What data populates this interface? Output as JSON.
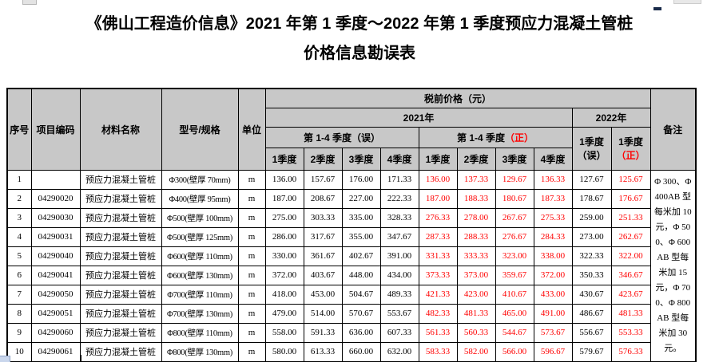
{
  "title": {
    "line1": "《佛山工程造价信息》2021 年第 1 季度～2022 年第 1 季度预应力混凝土管桩",
    "line2": "价格信息勘误表"
  },
  "colors": {
    "accent_red": "#ff0000",
    "header_bg": "#c8c8c8",
    "border": "#000000"
  },
  "table": {
    "header": {
      "seq": "序号",
      "code": "项目编码",
      "material": "材料名称",
      "spec": "型号/规格",
      "unit": "单位",
      "price_group": "税前价格（元）",
      "year2021": "2021年",
      "year2022": "2022年",
      "group_wrong": "第 1-4 季度（误）",
      "group_right_prefix": "第 1-4 季度",
      "mark_right": "（正）",
      "mark_wrong": "（误）",
      "q2022_label": "1季度",
      "quarters": [
        "1季度",
        "2季度",
        "3季度",
        "4季度"
      ],
      "note": "备注"
    },
    "rows": [
      {
        "seq": "1",
        "code": "",
        "material": "预应力混凝土管桩",
        "spec": "Φ300(壁厚 70mm)",
        "unit": "m",
        "wrong_2021": [
          "136.00",
          "157.67",
          "176.00",
          "171.33"
        ],
        "right_2021": [
          "136.00",
          "137.33",
          "129.67",
          "136.33"
        ],
        "wrong_2022": "127.67",
        "right_2022": "125.67"
      },
      {
        "seq": "2",
        "code": "04290020",
        "material": "预应力混凝土管桩",
        "spec": "Φ400(壁厚 95mm)",
        "unit": "m",
        "wrong_2021": [
          "187.00",
          "208.67",
          "227.00",
          "222.33"
        ],
        "right_2021": [
          "187.00",
          "188.33",
          "180.67",
          "187.33"
        ],
        "wrong_2022": "178.67",
        "right_2022": "176.67"
      },
      {
        "seq": "3",
        "code": "04290030",
        "material": "预应力混凝土管桩",
        "spec": "Φ500(壁厚 100mm)",
        "unit": "m",
        "wrong_2021": [
          "275.00",
          "303.33",
          "335.00",
          "328.33"
        ],
        "right_2021": [
          "276.33",
          "278.00",
          "267.67",
          "275.33"
        ],
        "wrong_2022": "259.00",
        "right_2022": "251.33"
      },
      {
        "seq": "4",
        "code": "04290031",
        "material": "预应力混凝土管桩",
        "spec": "Φ500(壁厚 125mm)",
        "unit": "m",
        "wrong_2021": [
          "286.00",
          "317.67",
          "355.00",
          "347.67"
        ],
        "right_2021": [
          "287.33",
          "288.33",
          "276.67",
          "284.33"
        ],
        "wrong_2022": "273.00",
        "right_2022": "262.67"
      },
      {
        "seq": "5",
        "code": "04290040",
        "material": "预应力混凝土管桩",
        "spec": "Φ600(壁厚 110mm)",
        "unit": "m",
        "wrong_2021": [
          "330.00",
          "361.67",
          "402.67",
          "391.00"
        ],
        "right_2021": [
          "331.33",
          "333.33",
          "323.00",
          "338.00"
        ],
        "wrong_2022": "322.33",
        "right_2022": "322.00"
      },
      {
        "seq": "6",
        "code": "04290041",
        "material": "预应力混凝土管桩",
        "spec": "Φ600(壁厚 130mm)",
        "unit": "m",
        "wrong_2021": [
          "372.00",
          "403.67",
          "448.00",
          "434.00"
        ],
        "right_2021": [
          "373.33",
          "373.00",
          "359.67",
          "372.00"
        ],
        "wrong_2022": "350.33",
        "right_2022": "346.67"
      },
      {
        "seq": "7",
        "code": "04290050",
        "material": "预应力混凝土管桩",
        "spec": "Φ700(壁厚 110mm)",
        "unit": "m",
        "wrong_2021": [
          "418.00",
          "453.00",
          "504.67",
          "489.33"
        ],
        "right_2021": [
          "421.33",
          "423.00",
          "410.67",
          "433.00"
        ],
        "wrong_2022": "430.67",
        "right_2022": "423.67"
      },
      {
        "seq": "8",
        "code": "04290051",
        "material": "预应力混凝土管桩",
        "spec": "Φ700(壁厚 130mm)",
        "unit": "m",
        "wrong_2021": [
          "479.00",
          "514.00",
          "570.67",
          "553.67"
        ],
        "right_2021": [
          "482.33",
          "481.33",
          "465.00",
          "491.00"
        ],
        "wrong_2022": "486.67",
        "right_2022": "481.33"
      },
      {
        "seq": "9",
        "code": "04290060",
        "material": "预应力混凝土管桩",
        "spec": "Φ800(壁厚 110mm)",
        "unit": "m",
        "wrong_2021": [
          "558.00",
          "591.33",
          "636.00",
          "607.33"
        ],
        "right_2021": [
          "561.33",
          "560.33",
          "544.67",
          "573.67"
        ],
        "wrong_2022": "556.67",
        "right_2022": "553.33"
      },
      {
        "seq": "10",
        "code": "04290061",
        "material": "预应力混凝土管桩",
        "spec": "Φ800(壁厚 130mm)",
        "unit": "m",
        "wrong_2021": [
          "580.00",
          "613.33",
          "660.00",
          "632.00"
        ],
        "right_2021": [
          "583.33",
          "582.00",
          "566.00",
          "596.67"
        ],
        "wrong_2022": "579.67",
        "right_2022": "576.33"
      }
    ],
    "note": "Φ 300、Φ 400AB 型每米加 10 元，Φ 500、Φ 600AB 型每米加 15 元，Φ 700、Φ 800AB 型每米加 30 元。"
  }
}
